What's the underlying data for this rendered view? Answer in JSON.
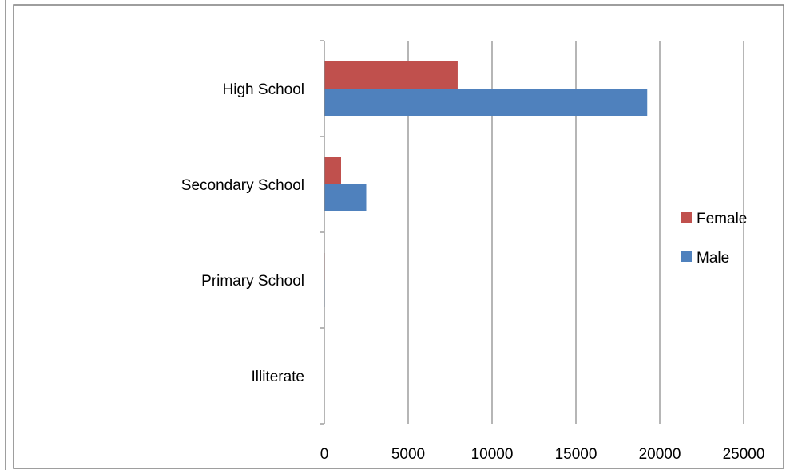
{
  "chart_data": {
    "type": "bar",
    "orientation": "horizontal",
    "title": "",
    "xlabel": "",
    "ylabel": "",
    "categories": [
      "Illiterate",
      "Primary School",
      "Secondary School",
      "High School"
    ],
    "series": [
      {
        "name": "Male",
        "color": "#4f81bd",
        "values": [
          0,
          30,
          2500,
          19250
        ]
      },
      {
        "name": "Female",
        "color": "#c0504d",
        "values": [
          0,
          30,
          1000,
          7950
        ]
      }
    ],
    "xlim": [
      0,
      25000
    ],
    "xticks": [
      0,
      5000,
      10000,
      15000,
      20000,
      25000
    ],
    "grid": true,
    "legend_position": "right"
  }
}
